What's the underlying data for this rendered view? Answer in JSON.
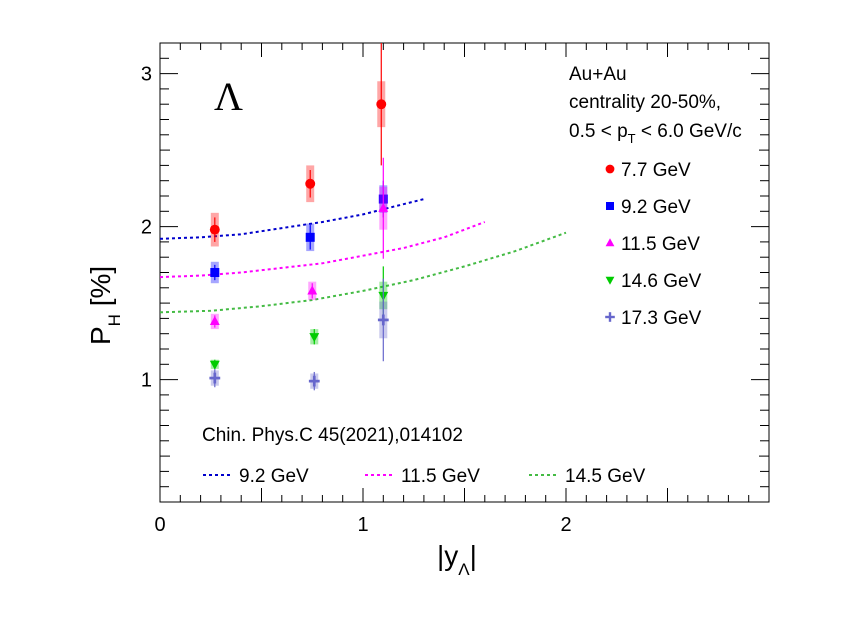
{
  "chart_data": {
    "type": "scatter",
    "symbol": "Λ",
    "xlabel": {
      "main": "|y",
      "sub": "Λ",
      "close": "|"
    },
    "ylabel": {
      "main": "P",
      "sub": "H",
      "rest": " [%]"
    },
    "xlim": [
      0,
      3.0
    ],
    "ylim": [
      0.2,
      3.2
    ],
    "xticks": [
      0,
      1,
      2
    ],
    "yticks": [
      1,
      2,
      3
    ],
    "info": {
      "line1": "Au+Au",
      "line2": "centrality 20-50%,",
      "line3_pre": "0.5 < p",
      "line3_sub": "T",
      "line3_post": " < 6.0 GeV/c"
    },
    "reference": "Chin. Phys.C 45(2021),014102",
    "series": [
      {
        "name": "7.7 GeV",
        "color": "#ff0000",
        "marker": "circle",
        "points": [
          {
            "x": 0.27,
            "y": 1.98,
            "stat": 0.08,
            "sys": 0.11
          },
          {
            "x": 0.74,
            "y": 2.28,
            "stat": 0.09,
            "sys": 0.12
          },
          {
            "x": 1.09,
            "y": 2.8,
            "stat": 0.4,
            "sys": 0.15
          }
        ]
      },
      {
        "name": "9.2 GeV",
        "color": "#0000ff",
        "marker": "square",
        "points": [
          {
            "x": 0.27,
            "y": 1.7,
            "stat": 0.05,
            "sys": 0.07
          },
          {
            "x": 0.74,
            "y": 1.93,
            "stat": 0.08,
            "sys": 0.09
          },
          {
            "x": 1.1,
            "y": 2.18,
            "stat": 0.12,
            "sys": 0.09
          }
        ]
      },
      {
        "name": "11.5 GeV",
        "color": "#ff00ff",
        "marker": "triangle-up",
        "points": [
          {
            "x": 0.27,
            "y": 1.38,
            "stat": 0.04,
            "sys": 0.05
          },
          {
            "x": 0.75,
            "y": 1.58,
            "stat": 0.05,
            "sys": 0.06
          },
          {
            "x": 1.1,
            "y": 2.12,
            "stat": 0.33,
            "sys": 0.14
          }
        ]
      },
      {
        "name": "14.6 GeV",
        "color": "#00cc00",
        "marker": "triangle-down",
        "points": [
          {
            "x": 0.27,
            "y": 1.1,
            "stat": 0.03,
            "sys": 0.03
          },
          {
            "x": 0.76,
            "y": 1.28,
            "stat": 0.05,
            "sys": 0.05
          },
          {
            "x": 1.1,
            "y": 1.55,
            "stat": 0.19,
            "sys": 0.09
          }
        ]
      },
      {
        "name": "17.3 GeV",
        "color": "#6666cc",
        "marker": "cross",
        "points": [
          {
            "x": 0.27,
            "y": 1.01,
            "stat": 0.06,
            "sys": 0.05
          },
          {
            "x": 0.76,
            "y": 0.99,
            "stat": 0.06,
            "sys": 0.05
          },
          {
            "x": 1.1,
            "y": 1.39,
            "stat": 0.27,
            "sys": 0.12
          }
        ]
      }
    ],
    "curves": [
      {
        "name": "9.2 GeV",
        "color": "#0000cc",
        "x": [
          0,
          0.2,
          0.4,
          0.6,
          0.8,
          1.0,
          1.15,
          1.3
        ],
        "y": [
          1.92,
          1.93,
          1.95,
          1.99,
          2.03,
          2.08,
          2.13,
          2.18
        ]
      },
      {
        "name": "11.5 GeV",
        "color": "#ff00ff",
        "x": [
          0,
          0.2,
          0.4,
          0.6,
          0.8,
          1.0,
          1.2,
          1.4,
          1.6
        ],
        "y": [
          1.67,
          1.68,
          1.7,
          1.73,
          1.76,
          1.81,
          1.86,
          1.93,
          2.03
        ]
      },
      {
        "name": "14.5 GeV",
        "color": "#44bb44",
        "x": [
          0,
          0.25,
          0.5,
          0.75,
          1.0,
          1.25,
          1.5,
          1.75,
          2.0
        ],
        "y": [
          1.44,
          1.45,
          1.48,
          1.52,
          1.58,
          1.65,
          1.74,
          1.84,
          1.96
        ]
      }
    ]
  }
}
